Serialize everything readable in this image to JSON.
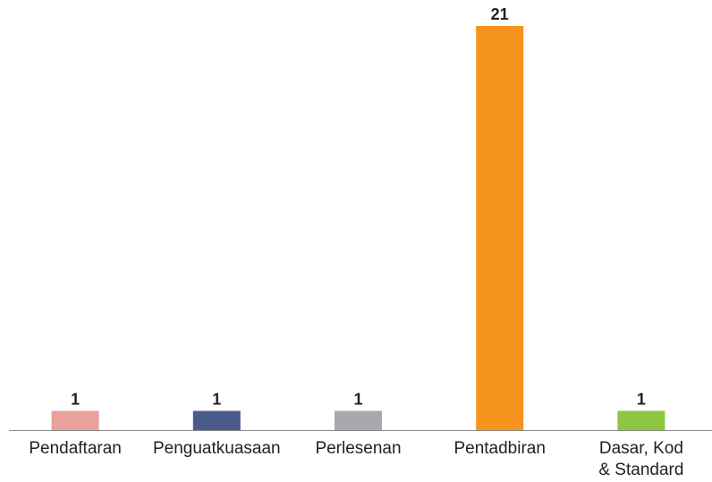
{
  "chart_data": {
    "type": "bar",
    "categories": [
      "Pendaftaran",
      "Penguatkuasaan",
      "Perlesenan",
      "Pentadbiran",
      "Dasar, Kod & Standard"
    ],
    "values": [
      1,
      1,
      1,
      21,
      1
    ],
    "colors": [
      "#eaa09b",
      "#4a5a8c",
      "#a8a9ac",
      "#f7941d",
      "#8dc63f"
    ]
  }
}
